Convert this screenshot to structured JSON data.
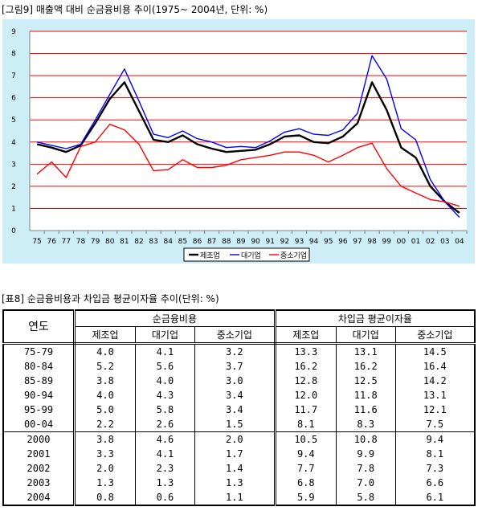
{
  "figure": {
    "caption": "[그림9] 매출액 대비 순금융비용 추이(1975~ 2004년, 단위: %)"
  },
  "chart_data": {
    "type": "line",
    "x": [
      "75",
      "76",
      "77",
      "78",
      "79",
      "80",
      "81",
      "82",
      "83",
      "84",
      "85",
      "86",
      "87",
      "88",
      "89",
      "90",
      "91",
      "92",
      "93",
      "94",
      "95",
      "96",
      "97",
      "98",
      "99",
      "00",
      "01",
      "02",
      "03",
      "04"
    ],
    "ylim": [
      0,
      9
    ],
    "yticks": [
      "0",
      "1",
      "2",
      "3",
      "4",
      "5",
      "6",
      "7",
      "8",
      "9"
    ],
    "grid": "horizontal",
    "legend_position": "bottom",
    "series": [
      {
        "name": "제조업",
        "color": "#000000",
        "values": [
          3.9,
          3.75,
          3.55,
          3.85,
          4.85,
          5.95,
          6.7,
          5.4,
          4.1,
          4.0,
          4.3,
          3.9,
          3.7,
          3.55,
          3.6,
          3.65,
          3.9,
          4.25,
          4.3,
          4.0,
          3.95,
          4.25,
          4.85,
          6.7,
          5.45,
          3.75,
          3.3,
          2.0,
          1.3,
          0.8
        ]
      },
      {
        "name": "대기업",
        "color": "#0000ff",
        "values": [
          4.0,
          3.85,
          3.7,
          3.9,
          5.0,
          6.15,
          7.3,
          5.85,
          4.35,
          4.2,
          4.5,
          4.15,
          4.0,
          3.75,
          3.8,
          3.75,
          4.05,
          4.45,
          4.6,
          4.35,
          4.3,
          4.55,
          5.3,
          7.9,
          6.85,
          4.6,
          4.1,
          2.3,
          1.3,
          0.6
        ]
      },
      {
        "name": "중소기업",
        "color": "#ff0000",
        "values": [
          2.55,
          3.1,
          2.4,
          3.8,
          4.0,
          4.8,
          4.55,
          3.9,
          2.7,
          2.75,
          3.2,
          2.85,
          2.85,
          2.95,
          3.2,
          3.3,
          3.4,
          3.55,
          3.55,
          3.4,
          3.1,
          3.4,
          3.75,
          3.95,
          2.8,
          2.0,
          1.7,
          1.4,
          1.3,
          1.1
        ]
      }
    ]
  },
  "table": {
    "caption": "[표8] 순금융비용과 차입금 평균이자율 추이(단위: %)",
    "corner": "연도",
    "groups": [
      "순금융비용",
      "차입금 평균이자율"
    ],
    "subheaders": [
      "제조업",
      "대기업",
      "중소기업",
      "제조업",
      "대기업",
      "중소기업"
    ],
    "rows": [
      {
        "year": "75-79",
        "v": [
          "4.0",
          "4.1",
          "3.2",
          "13.3",
          "13.1",
          "14.5"
        ]
      },
      {
        "year": "80-84",
        "v": [
          "5.2",
          "5.6",
          "3.7",
          "16.2",
          "16.2",
          "16.4"
        ]
      },
      {
        "year": "85-89",
        "v": [
          "3.8",
          "4.0",
          "3.0",
          "12.8",
          "12.5",
          "14.2"
        ]
      },
      {
        "year": "90-94",
        "v": [
          "4.0",
          "4.3",
          "3.4",
          "12.0",
          "11.8",
          "13.1"
        ]
      },
      {
        "year": "95-99",
        "v": [
          "5.0",
          "5.8",
          "3.4",
          "11.7",
          "11.6",
          "12.1"
        ]
      },
      {
        "year": "00-04",
        "v": [
          "2.2",
          "2.6",
          "1.5",
          "8.1",
          "8.3",
          "7.5"
        ]
      },
      {
        "year": "2000",
        "v": [
          "3.8",
          "4.6",
          "2.0",
          "10.5",
          "10.8",
          "9.4"
        ]
      },
      {
        "year": "2001",
        "v": [
          "3.3",
          "4.1",
          "1.7",
          "9.4",
          "9.9",
          "8.1"
        ]
      },
      {
        "year": "2002",
        "v": [
          "2.0",
          "2.3",
          "1.4",
          "7.7",
          "7.8",
          "7.3"
        ]
      },
      {
        "year": "2003",
        "v": [
          "1.3",
          "1.3",
          "1.3",
          "6.8",
          "7.0",
          "6.6"
        ]
      },
      {
        "year": "2004",
        "v": [
          "0.8",
          "0.6",
          "1.1",
          "5.9",
          "5.8",
          "6.1"
        ]
      }
    ]
  }
}
